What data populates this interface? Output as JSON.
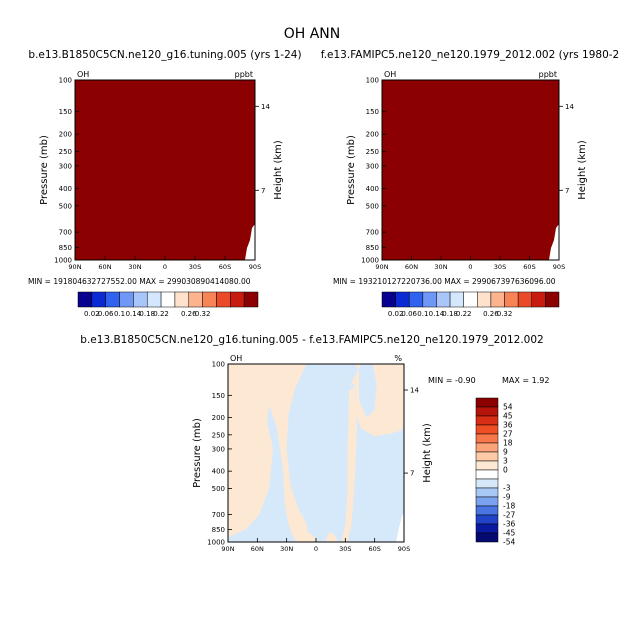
{
  "page_title": "OH ANN",
  "chart_data": [
    {
      "type": "heatmap",
      "panel": "top-left",
      "title": "b.e13.B1850C5CN.ne120_g16.tuning.005 (yrs 1-24)",
      "variable": "OH",
      "units": "ppbt",
      "ylabel": "Pressure (mb)",
      "right_label": "Height (km)",
      "y_ticks": [
        "100",
        "150",
        "200",
        "250",
        "300",
        "400",
        "500",
        "700",
        "850",
        "1000"
      ],
      "y_tick_values": [
        100,
        150,
        200,
        250,
        300,
        400,
        500,
        700,
        850,
        1000
      ],
      "height_ticks": [
        "14",
        "7"
      ],
      "x_ticks": [
        "90N",
        "60N",
        "30N",
        "0",
        "30S",
        "60S",
        "90S"
      ],
      "x_tick_values": [
        90,
        60,
        30,
        0,
        -30,
        -60,
        -90
      ],
      "min_label": "MIN =",
      "min_value": "191804632727552.00",
      "max_label": "MAX =",
      "max_value": "299030890414080.00",
      "fill_color": "#8B0000",
      "colorbar_labels": [
        "0.02",
        "0.06",
        "0.1",
        "0.14",
        "0.18",
        "0.22",
        "0.26",
        "0.32"
      ],
      "colorbar_colors": [
        "#08008e",
        "#0a2bd4",
        "#2f62ee",
        "#6f98f6",
        "#a9c6fb",
        "#d5e7fd",
        "#ffffff",
        "#ffe2cc",
        "#fdb38d",
        "#f88357",
        "#ea4a28",
        "#c81c10",
        "#8b0000"
      ]
    },
    {
      "type": "heatmap",
      "panel": "top-right",
      "title": "f.e13.FAMIPC5.ne120_ne120.1979_2012.002 (yrs 1980-2",
      "variable": "OH",
      "units": "ppbt",
      "ylabel": "Pressure (mb)",
      "right_label": "Height (km)",
      "y_ticks": [
        "100",
        "150",
        "200",
        "250",
        "300",
        "400",
        "500",
        "700",
        "850",
        "1000"
      ],
      "y_tick_values": [
        100,
        150,
        200,
        250,
        300,
        400,
        500,
        700,
        850,
        1000
      ],
      "height_ticks": [
        "14",
        "7"
      ],
      "x_ticks": [
        "90N",
        "60N",
        "30N",
        "0",
        "30S",
        "60S",
        "90S"
      ],
      "x_tick_values": [
        90,
        60,
        30,
        0,
        -30,
        -60,
        -90
      ],
      "min_label": "MIN =",
      "min_value": "193210127220736.00",
      "max_label": "MAX =",
      "max_value": "299067397636096.00",
      "fill_color": "#8B0000",
      "colorbar_labels": [
        "0.02",
        "0.06",
        "0.1",
        "0.14",
        "0.18",
        "0.22",
        "0.26",
        "0.32"
      ],
      "colorbar_colors": [
        "#08008e",
        "#0a2bd4",
        "#2f62ee",
        "#6f98f6",
        "#a9c6fb",
        "#d5e7fd",
        "#ffffff",
        "#ffe2cc",
        "#fdb38d",
        "#f88357",
        "#ea4a28",
        "#c81c10",
        "#8b0000"
      ]
    },
    {
      "type": "heatmap",
      "panel": "bottom-difference",
      "title": "b.e13.B1850C5CN.ne120_g16.tuning.005 - f.e13.FAMIPC5.ne120_ne120.1979_2012.002",
      "variable": "OH",
      "units": "%",
      "ylabel": "Pressure (mb)",
      "right_label": "Height (km)",
      "y_ticks": [
        "100",
        "150",
        "200",
        "250",
        "300",
        "400",
        "500",
        "700",
        "850",
        "1000"
      ],
      "y_tick_values": [
        100,
        150,
        200,
        250,
        300,
        400,
        500,
        700,
        850,
        1000
      ],
      "height_ticks": [
        "14",
        "7"
      ],
      "x_ticks": [
        "90N",
        "60N",
        "30N",
        "0",
        "30S",
        "60S",
        "90S"
      ],
      "x_tick_values": [
        90,
        60,
        30,
        0,
        -30,
        -60,
        -90
      ],
      "min_label": "MIN =",
      "min_value": "-0.90",
      "max_label": "MAX =",
      "max_value": "1.92",
      "positive_color": "#FDE8D4",
      "negative_color": "#D6E9FB",
      "legend_labels": [
        "54",
        "45",
        "36",
        "27",
        "18",
        "9",
        "3",
        "0",
        "-3",
        "-9",
        "-18",
        "-27",
        "-36",
        "-45",
        "-54"
      ],
      "legend_colors": [
        "#8b0000",
        "#b5140a",
        "#d72e15",
        "#f04f26",
        "#f7784a",
        "#fca37a",
        "#fdcaa8",
        "#fde8d4",
        "#ffffff",
        "#d6e9fb",
        "#a8c8f6",
        "#7aa2ef",
        "#4a74e1",
        "#2143c8",
        "#0a1aa0",
        "#050a70"
      ]
    }
  ]
}
